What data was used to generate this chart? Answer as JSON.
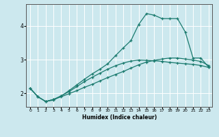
{
  "xlabel": "Humidex (Indice chaleur)",
  "background_color": "#cce8ee",
  "grid_color": "#ffffff",
  "line_color": "#1a7a6e",
  "xlim": [
    -0.5,
    23.5
  ],
  "ylim": [
    1.6,
    4.65
  ],
  "yticks": [
    2,
    3,
    4
  ],
  "xticks": [
    0,
    1,
    2,
    3,
    4,
    5,
    6,
    7,
    8,
    9,
    10,
    11,
    12,
    13,
    14,
    15,
    16,
    17,
    18,
    19,
    20,
    21,
    22,
    23
  ],
  "series1_x": [
    0,
    1,
    2,
    3,
    4,
    5,
    6,
    7,
    8,
    9,
    10,
    11,
    12,
    13,
    14,
    15,
    16,
    17,
    18,
    19,
    20,
    21,
    22,
    23
  ],
  "series1_y": [
    2.15,
    1.9,
    1.76,
    1.8,
    1.92,
    2.08,
    2.25,
    2.42,
    2.58,
    2.72,
    2.88,
    3.12,
    3.35,
    3.57,
    4.05,
    4.37,
    4.32,
    4.22,
    4.22,
    4.22,
    3.82,
    3.05,
    3.05,
    2.78
  ],
  "series2_x": [
    0,
    1,
    2,
    3,
    4,
    5,
    6,
    7,
    8,
    9,
    10,
    11,
    12,
    13,
    14,
    15,
    16,
    17,
    18,
    19,
    20,
    21,
    22,
    23
  ],
  "series2_y": [
    2.15,
    1.9,
    1.76,
    1.82,
    1.9,
    1.99,
    2.08,
    2.18,
    2.27,
    2.37,
    2.47,
    2.56,
    2.65,
    2.75,
    2.85,
    2.93,
    2.98,
    3.02,
    3.05,
    3.05,
    3.02,
    2.99,
    2.95,
    2.83
  ],
  "series3_x": [
    0,
    1,
    2,
    3,
    4,
    5,
    6,
    7,
    8,
    9,
    10,
    11,
    12,
    13,
    14,
    15,
    16,
    17,
    18,
    19,
    20,
    21,
    22,
    23
  ],
  "series3_y": [
    2.15,
    1.9,
    1.76,
    1.82,
    1.93,
    2.05,
    2.2,
    2.35,
    2.48,
    2.6,
    2.72,
    2.82,
    2.9,
    2.96,
    2.99,
    2.98,
    2.97,
    2.95,
    2.92,
    2.9,
    2.88,
    2.86,
    2.83,
    2.77
  ]
}
